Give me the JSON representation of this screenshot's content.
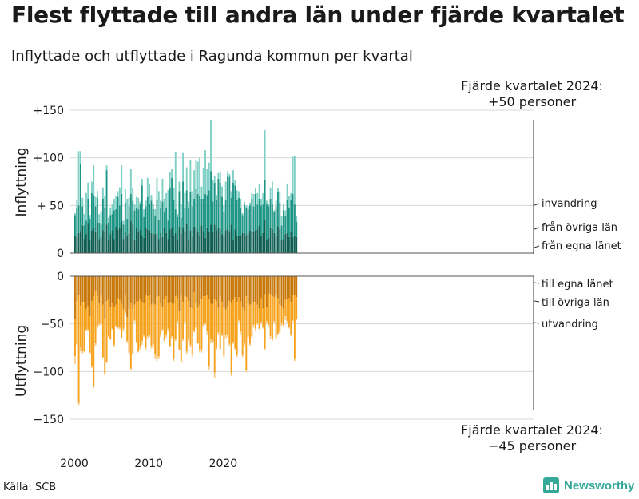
{
  "header": {
    "title": "Flest flyttade till andra län under fjärde kvartalet",
    "subtitle": "Inflyttade och utflyttade i Ragunda kommun per kvartal"
  },
  "annotations": {
    "top_line1": "Fjärde kvartalet 2024:",
    "top_line2": "+50 personer",
    "bottom_line1": "Fjärde kvartalet 2024:",
    "bottom_line2": "−45 personer"
  },
  "footer": {
    "source": "Källa: SCB",
    "brand": "Newsworthy"
  },
  "colors": {
    "in_own": "#0f5e52",
    "in_other": "#1d9585",
    "in_immig": "#7fcfc5",
    "out_own": "#c77808",
    "out_other": "#f6a11a",
    "out_emig": "#f9cf90",
    "grid": "#d9d9d9"
  },
  "chart_data": [
    {
      "type": "bar",
      "stacked": true,
      "title": "Inflyttning",
      "ylabel": "Inflyttning",
      "ylim": [
        0,
        150
      ],
      "yticks": [
        0,
        50,
        100,
        150
      ],
      "ytick_labels": [
        "0",
        "+ 50",
        "+100",
        "+150"
      ],
      "x_start": 2000,
      "x_step": 0.25,
      "xticks": [
        2000,
        2010,
        2020
      ],
      "xtick_labels": [
        "2000",
        "2010",
        "2020"
      ],
      "series": [
        {
          "name": "från egna länet",
          "values": [
            18,
            17,
            21,
            23,
            29,
            15,
            20,
            32,
            14,
            24,
            26,
            22,
            32,
            15,
            17,
            24,
            22,
            30,
            13,
            20,
            24,
            15,
            28,
            25,
            26,
            33,
            15,
            22,
            18,
            21,
            34,
            30,
            14,
            26,
            23,
            25,
            19,
            16,
            26,
            25,
            24,
            21,
            20,
            20,
            21,
            15,
            21,
            17,
            27,
            21,
            15,
            25,
            26,
            19,
            21,
            14,
            28,
            20,
            26,
            23,
            31,
            14,
            24,
            17,
            28,
            26,
            22,
            18,
            29,
            23,
            16,
            27,
            22,
            30,
            22,
            30,
            24,
            26,
            25,
            20,
            18,
            24,
            25,
            23,
            30,
            14,
            25,
            18,
            18,
            19,
            21,
            21,
            19,
            21,
            24,
            22,
            23,
            24,
            25,
            29,
            18,
            21,
            35,
            14,
            16,
            27,
            25,
            21,
            19,
            28,
            25,
            14,
            15,
            20,
            21,
            17,
            23,
            17,
            18,
            17
          ]
        },
        {
          "name": "från övriga län",
          "values": [
            22,
            30,
            29,
            70,
            20,
            14,
            14,
            25,
            22,
            39,
            35,
            27,
            26,
            17,
            13,
            33,
            25,
            57,
            19,
            20,
            17,
            30,
            18,
            34,
            24,
            29,
            15,
            31,
            18,
            28,
            28,
            25,
            31,
            22,
            23,
            26,
            52,
            22,
            23,
            34,
            28,
            34,
            26,
            19,
            35,
            20,
            27,
            37,
            16,
            27,
            19,
            43,
            53,
            37,
            25,
            24,
            37,
            17,
            49,
            25,
            35,
            33,
            40,
            32,
            29,
            41,
            40,
            42,
            28,
            34,
            46,
            34,
            44,
            56,
            32,
            44,
            32,
            52,
            49,
            39,
            25,
            32,
            55,
            57,
            28,
            60,
            46,
            38,
            40,
            29,
            19,
            30,
            29,
            25,
            26,
            35,
            26,
            38,
            26,
            28,
            32,
            30,
            42,
            37,
            33,
            30,
            26,
            22,
            30,
            36,
            28,
            15,
            30,
            19,
            35,
            31,
            33,
            45,
            33,
            16
          ]
        },
        {
          "name": "invandring",
          "values": [
            2,
            9,
            57,
            14,
            9,
            12,
            29,
            17,
            4,
            12,
            31,
            10,
            7,
            9,
            14,
            12,
            13,
            5,
            5,
            8,
            11,
            12,
            14,
            6,
            19,
            30,
            4,
            14,
            21,
            9,
            26,
            14,
            6,
            11,
            12,
            3,
            7,
            8,
            6,
            20,
            21,
            6,
            5,
            7,
            23,
            30,
            7,
            24,
            14,
            15,
            32,
            17,
            9,
            12,
            60,
            3,
            10,
            14,
            30,
            15,
            24,
            7,
            34,
            16,
            30,
            31,
            34,
            40,
            13,
            32,
            46,
            27,
            29,
            54,
            23,
            7,
            5,
            6,
            11,
            11,
            7,
            19,
            6,
            3,
            7,
            13,
            6,
            10,
            7,
            9,
            2,
            3,
            2,
            3,
            3,
            6,
            13,
            6,
            12,
            15,
            7,
            12,
            52,
            4,
            3,
            12,
            24,
            2,
            6,
            4,
            12,
            10,
            6,
            6,
            17,
            12,
            7,
            39,
            51,
            6
          ]
        }
      ]
    },
    {
      "type": "bar",
      "stacked": true,
      "title": "Utflyttning",
      "ylabel": "Utflyttning",
      "ylim": [
        -150,
        0
      ],
      "yticks": [
        0,
        -50,
        -100,
        -150
      ],
      "ytick_labels": [
        "0",
        "−50",
        "−100",
        "−150"
      ],
      "x_start": 2000,
      "x_step": 0.25,
      "series": [
        {
          "name": "till egna länet",
          "values": [
            -45,
            -26,
            -20,
            -31,
            -27,
            -27,
            -34,
            -31,
            -42,
            -26,
            -21,
            -15,
            -21,
            -28,
            -20,
            -30,
            -45,
            -26,
            -24,
            -32,
            -28,
            -32,
            -30,
            -23,
            -25,
            -29,
            -35,
            -20,
            -43,
            -35,
            -28,
            -34,
            -30,
            -27,
            -26,
            -24,
            -27,
            -28,
            -20,
            -21,
            -20,
            -30,
            -28,
            -30,
            -22,
            -21,
            -28,
            -32,
            -24,
            -21,
            -28,
            -27,
            -28,
            -29,
            -21,
            -23,
            -36,
            -20,
            -27,
            -21,
            -22,
            -26,
            -32,
            -34,
            -17,
            -28,
            -32,
            -30,
            -24,
            -21,
            -21,
            -20,
            -24,
            -29,
            -30,
            -24,
            -26,
            -33,
            -21,
            -27,
            -33,
            -35,
            -31,
            -26,
            -28,
            -25,
            -22,
            -27,
            -22,
            -26,
            -33,
            -36,
            -21,
            -28,
            -30,
            -30,
            -27,
            -27,
            -30,
            -34,
            -23,
            -34,
            -19,
            -33,
            -18,
            -19,
            -21,
            -22,
            -20,
            -23,
            -30,
            -31,
            -34,
            -25,
            -24,
            -23,
            -27,
            -20,
            -20,
            -22
          ]
        },
        {
          "name": "till övriga län",
          "values": [
            -39,
            -45,
            -113,
            -43,
            -52,
            -52,
            -22,
            -25,
            -38,
            -69,
            -95,
            -55,
            -31,
            -22,
            -29,
            -55,
            -57,
            -64,
            -39,
            -34,
            -27,
            -40,
            -22,
            -31,
            -29,
            -35,
            -20,
            -18,
            -25,
            -45,
            -69,
            -47,
            -16,
            -42,
            -53,
            -50,
            -41,
            -34,
            -55,
            -42,
            -41,
            -43,
            -43,
            -52,
            -64,
            -63,
            -34,
            -24,
            -43,
            -40,
            -27,
            -46,
            -35,
            -58,
            -45,
            -24,
            -41,
            -69,
            -39,
            -27,
            -57,
            -39,
            -40,
            -48,
            -40,
            -25,
            -38,
            -47,
            -53,
            -30,
            -28,
            -37,
            -70,
            -37,
            -38,
            -77,
            -49,
            -26,
            -55,
            -34,
            -50,
            -27,
            -30,
            -45,
            -74,
            -44,
            -54,
            -56,
            -24,
            -32,
            -50,
            -34,
            -78,
            -35,
            -41,
            -33,
            -24,
            -28,
            -19,
            -21,
            -25,
            -19,
            -57,
            -14,
            -33,
            -44,
            -45,
            -25,
            -44,
            -37,
            -27,
            -18,
            -17,
            -17,
            -23,
            -30,
            -34,
            -26,
            -67,
            -23
          ]
        },
        {
          "name": "utvandring",
          "values": [
            -8,
            -1,
            -2,
            -5,
            -2,
            -1,
            -1,
            -1,
            -1,
            -1,
            -1,
            -3,
            -3,
            -2,
            -2,
            -1,
            -2,
            -1,
            -1,
            -1,
            -1,
            -2,
            -1,
            -1,
            -2,
            -2,
            -2,
            -2,
            -2,
            -1,
            -2,
            -1,
            -2,
            -1,
            -1,
            -3,
            -4,
            -2,
            -2,
            -2,
            -3,
            -3,
            -4,
            -5,
            -3,
            -3,
            -2,
            -2,
            -2,
            -3,
            -2,
            -1,
            -2,
            -2,
            -2,
            -2,
            -1,
            -2,
            -2,
            -1,
            -3,
            -3,
            -2,
            -3,
            -2,
            -2,
            -1,
            -3,
            -3,
            -2,
            -2,
            -4,
            -4,
            -4,
            -2,
            -6,
            -2,
            -3,
            -2,
            -2,
            -2,
            -3,
            -3,
            -2,
            -3,
            -2,
            -2,
            -2,
            -2,
            -3,
            -2,
            -3,
            -2,
            -2,
            -2,
            -2,
            -3,
            -2,
            -2,
            -1,
            -2,
            -2,
            -2,
            -3,
            -2,
            -3,
            -2,
            -2,
            -2,
            -2,
            -3,
            -3,
            -2,
            -4,
            -2,
            -2,
            -2,
            -2,
            -2,
            -1
          ]
        }
      ],
      "series_labels": [
        "till egna länet",
        "till övriga län",
        "utvandring"
      ]
    }
  ]
}
